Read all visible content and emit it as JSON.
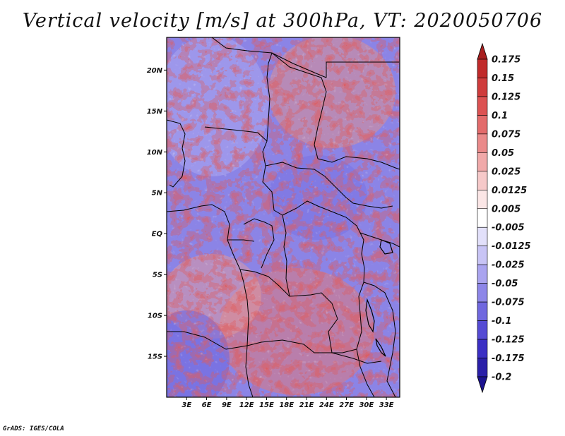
{
  "title": "Vertical velocity [m/s] at 300hPa, VT: 2020050706",
  "credit": "GrADS: IGES/COLA",
  "map": {
    "lon_range": [
      0,
      35
    ],
    "lat_range": [
      -20,
      24
    ],
    "lat_ticks": [
      "20N",
      "15N",
      "10N",
      "5N",
      "EQ",
      "5S",
      "10S",
      "15S"
    ],
    "lon_ticks": [
      "3E",
      "6E",
      "9E",
      "12E",
      "15E",
      "18E",
      "21E",
      "24E",
      "27E",
      "30E",
      "33E"
    ]
  },
  "colorbar": {
    "levels": [
      "0.175",
      "0.15",
      "0.125",
      "0.1",
      "0.075",
      "0.05",
      "0.025",
      "0.0125",
      "0.005",
      "-0.005",
      "-0.0125",
      "-0.025",
      "-0.05",
      "-0.075",
      "-0.1",
      "-0.125",
      "-0.175",
      "-0.2"
    ],
    "colors": [
      "#a81f1f",
      "#c02a2a",
      "#cf3c3c",
      "#dc5252",
      "#e36b6b",
      "#ea8a8a",
      "#f0a9a9",
      "#f6c9c9",
      "#fbe6e6",
      "#ffffff",
      "#e2e0fa",
      "#c8c4f5",
      "#aaa4ef",
      "#8d86e8",
      "#7068df",
      "#554bd4",
      "#3b2fc4",
      "#2a1fa8",
      "#1c1390"
    ]
  }
}
